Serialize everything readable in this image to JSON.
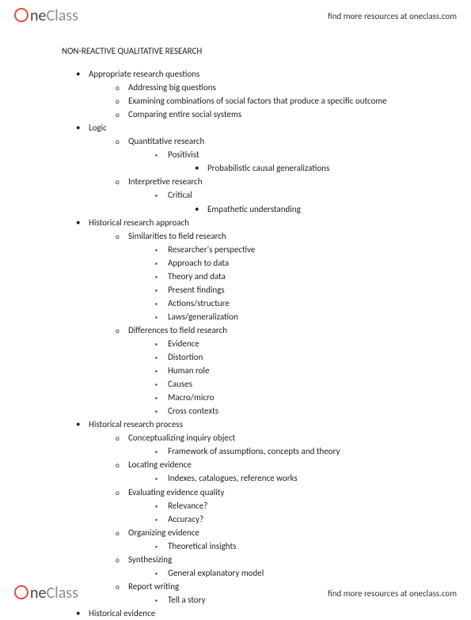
{
  "brand": {
    "ne": "ne",
    "class": "Class"
  },
  "link_text": "find more resources at oneclass.com",
  "title": "NON-REACTIVE QUALITATIVE RESEARCH",
  "outline": [
    {
      "t": "Appropriate research questions",
      "c": [
        {
          "t": "Addressing big questions"
        },
        {
          "t": "Examining combinations of social factors that produce a specific outcome"
        },
        {
          "t": "Comparing entire social systems"
        }
      ]
    },
    {
      "t": "Logic",
      "c": [
        {
          "t": "Quantitative research",
          "c": [
            {
              "t": "Positivist",
              "c": [
                {
                  "t": "Probabilistic causal generalizations"
                }
              ]
            }
          ]
        },
        {
          "t": "Interpretive research",
          "c": [
            {
              "t": "Critical",
              "c": [
                {
                  "t": "Empathetic understanding"
                }
              ]
            }
          ]
        }
      ]
    },
    {
      "t": "Historical research approach",
      "c": [
        {
          "t": "Similarities to field research",
          "c": [
            {
              "t": "Researcher's perspective"
            },
            {
              "t": "Approach to data"
            },
            {
              "t": "Theory and data"
            },
            {
              "t": "Present findings"
            },
            {
              "t": "Actions/structure"
            },
            {
              "t": "Laws/generalization"
            }
          ]
        },
        {
          "t": "Differences to field research",
          "c": [
            {
              "t": "Evidence"
            },
            {
              "t": "Distortion"
            },
            {
              "t": "Human role"
            },
            {
              "t": "Causes"
            },
            {
              "t": "Macro/micro"
            },
            {
              "t": "Cross contexts"
            }
          ]
        }
      ]
    },
    {
      "t": "Historical research process",
      "c": [
        {
          "t": "Conceptualizing inquiry object",
          "c": [
            {
              "t": "Framework of assumptions, concepts and theory"
            }
          ]
        },
        {
          "t": "Locating evidence",
          "c": [
            {
              "t": "Indexes, catalogues, reference works"
            }
          ]
        },
        {
          "t": "Evaluating evidence quality",
          "c": [
            {
              "t": "Relevance?"
            },
            {
              "t": "Accuracy?"
            }
          ]
        },
        {
          "t": "Organizing evidence",
          "c": [
            {
              "t": "Theoretical insights"
            }
          ]
        },
        {
          "t": "Synthesizing",
          "c": [
            {
              "t": "General explanatory model"
            }
          ]
        },
        {
          "t": "Report writing",
          "c": [
            {
              "t": "Tell a story"
            }
          ]
        }
      ]
    },
    {
      "t": "Historical evidence"
    }
  ]
}
